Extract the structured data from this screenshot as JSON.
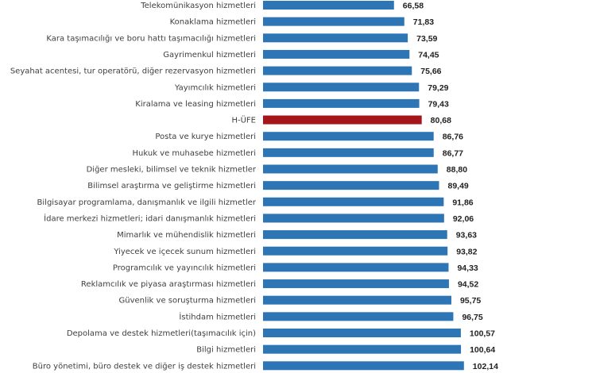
{
  "chart_data": {
    "type": "bar",
    "orientation": "horizontal",
    "title": "",
    "xlabel": "",
    "ylabel": "",
    "grid": false,
    "legend": "none",
    "xlim": [
      0,
      102.14
    ],
    "colors": {
      "default": "#2e75b6",
      "highlight": "#a5161b"
    },
    "highlight_category": "H-ÜFE",
    "categories": [
      "Telekomünikasyon hizmetleri",
      "Konaklama hizmetleri",
      "Kara taşımacılığı ve boru hattı taşımacılığı hizmetleri",
      "Gayrimenkul hizmetleri",
      "Seyahat acentesi, tur operatörü, diğer rezervasyon hizmetleri",
      "Yayımcılık hizmetleri",
      "Kiralama ve leasing hizmetleri",
      "H-ÜFE",
      "Posta ve kurye hizmetleri",
      "Hukuk ve muhasebe hizmetleri",
      "Diğer mesleki, bilimsel ve teknik hizmetler",
      "Bilimsel araştırma ve geliştirme hizmetleri",
      "Bilgisayar programlama, danışmanlık ve ilgili hizmetler",
      "İdare merkezi hizmetleri; idari danışmanlık hizmetleri",
      "Mimarlık ve mühendislik hizmetleri",
      "Yiyecek ve içecek sunum hizmetleri",
      "Programcılık ve yayıncılık hizmetleri",
      "Reklamcılık ve piyasa araştırması hizmetleri",
      "Güvenlik ve soruşturma hizmetleri",
      "İstihdam hizmetleri",
      "Depolama ve destek hizmetleri(taşımacılık için)",
      "Bilgi hizmetleri",
      "Büro yönetimi, büro destek ve diğer iş destek hizmetleri"
    ],
    "values": [
      66.58,
      71.83,
      73.59,
      74.45,
      75.66,
      79.29,
      79.43,
      80.68,
      86.76,
      86.77,
      88.8,
      89.49,
      91.86,
      92.06,
      93.63,
      93.82,
      94.33,
      94.52,
      95.75,
      96.75,
      100.57,
      100.64,
      102.14
    ],
    "value_labels": [
      "66,58",
      "71,83",
      "73,59",
      "74,45",
      "75,66",
      "79,29",
      "79,43",
      "80,68",
      "86,76",
      "86,77",
      "88,80",
      "89,49",
      "91,86",
      "92,06",
      "93,63",
      "93,82",
      "94,33",
      "94,52",
      "95,75",
      "96,75",
      "100,57",
      "100,64",
      "102,14"
    ]
  }
}
